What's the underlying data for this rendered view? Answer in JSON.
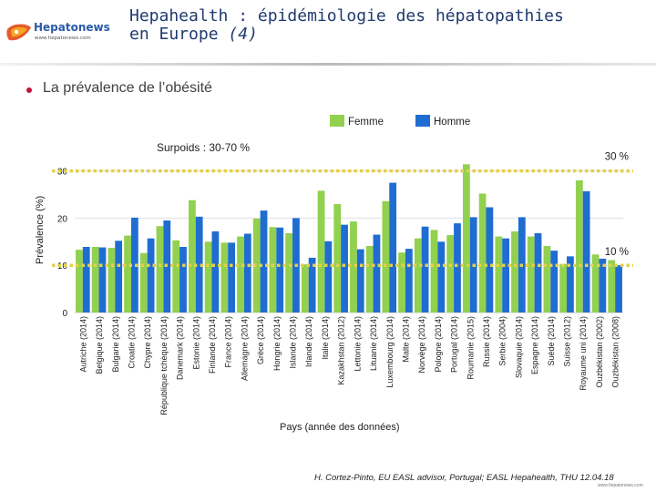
{
  "header": {
    "logo_name": "Hepatonews",
    "logo_url": "www.hepatonews.com",
    "title_line1": "Hepahealth : épidémiologie des hépatopathies",
    "title_line2": "en Europe",
    "title_suffix": "(4)"
  },
  "slide": {
    "bullet": "La prévalence de l’obésité",
    "footer": "H. Cortez-Pinto, EU EASL advisor, Portugal; EASL Hepahealth, THU 12.04.18",
    "footer_url": "www.hepatonews.com"
  },
  "colors": {
    "femme": "#92d050",
    "homme": "#1f6dd1",
    "reference_line": "#e3d04a",
    "title": "#1f3a6e",
    "bullet": "#c0143c"
  },
  "chart_data": {
    "type": "bar",
    "subtitle": "Surpoids : 30-70 %",
    "ylabel": "Prévalence (%)",
    "xlabel": "Pays (année des données)",
    "ylim": [
      0,
      33
    ],
    "yticks": [
      0,
      10,
      20,
      30
    ],
    "legend_position": "top-right",
    "reference_lines": [
      {
        "value": 30,
        "label": "30 %"
      },
      {
        "value": 10,
        "label": "10 %"
      }
    ],
    "categories": [
      "Autriche (2014)",
      "Belgique (2014)",
      "Bulgarie (2014)",
      "Croatie (2014)",
      "Chypre (2014)",
      "République tchèque (2014)",
      "Danemark (2014)",
      "Estonie (2014)",
      "Finlande (2014)",
      "France (2014)",
      "Allemagne (2014)",
      "Grèce (2014)",
      "Hongrie (2014)",
      "Islande (2014)",
      "Irlande (2014)",
      "Italie (2014)",
      "Kazakhstan (2012)",
      "Lettonie (2014)",
      "Lituanie (2014)",
      "Luxembourg (2014)",
      "Malte (2014)",
      "Norvège (2014)",
      "Pologne (2014)",
      "Portugal (2014)",
      "Roumanie (2015)",
      "Russie (2014)",
      "Serbie (2004)",
      "Slovaquie (2014)",
      "Espagne (2014)",
      "Suède (2014)",
      "Suisse (2012)",
      "Royaume uni (2014)",
      "Ouzbékistan (2002)",
      "Ouzbékistan (2008)"
    ],
    "series": [
      {
        "name": "Femme",
        "values": [
          13.3,
          13.9,
          13.7,
          16.3,
          12.6,
          18.3,
          15.3,
          23.8,
          15.0,
          14.8,
          16.1,
          19.9,
          18.1,
          16.8,
          10.2,
          25.8,
          23.0,
          19.3,
          14.1,
          23.6,
          12.7,
          15.7,
          17.5,
          16.4,
          31.4,
          25.2,
          16.1,
          17.2,
          16.1,
          14.1,
          10.3,
          28.0,
          12.3,
          11.1
        ]
      },
      {
        "name": "Homme",
        "values": [
          13.9,
          13.8,
          15.2,
          20.1,
          15.7,
          19.5,
          13.9,
          20.3,
          17.2,
          14.8,
          16.7,
          21.6,
          18.0,
          20.0,
          11.6,
          15.1,
          18.6,
          13.4,
          16.5,
          27.5,
          13.5,
          18.2,
          15.0,
          18.9,
          20.2,
          22.3,
          15.7,
          20.2,
          16.8,
          13.1,
          11.9,
          25.7,
          11.4,
          10.0
        ]
      }
    ]
  }
}
